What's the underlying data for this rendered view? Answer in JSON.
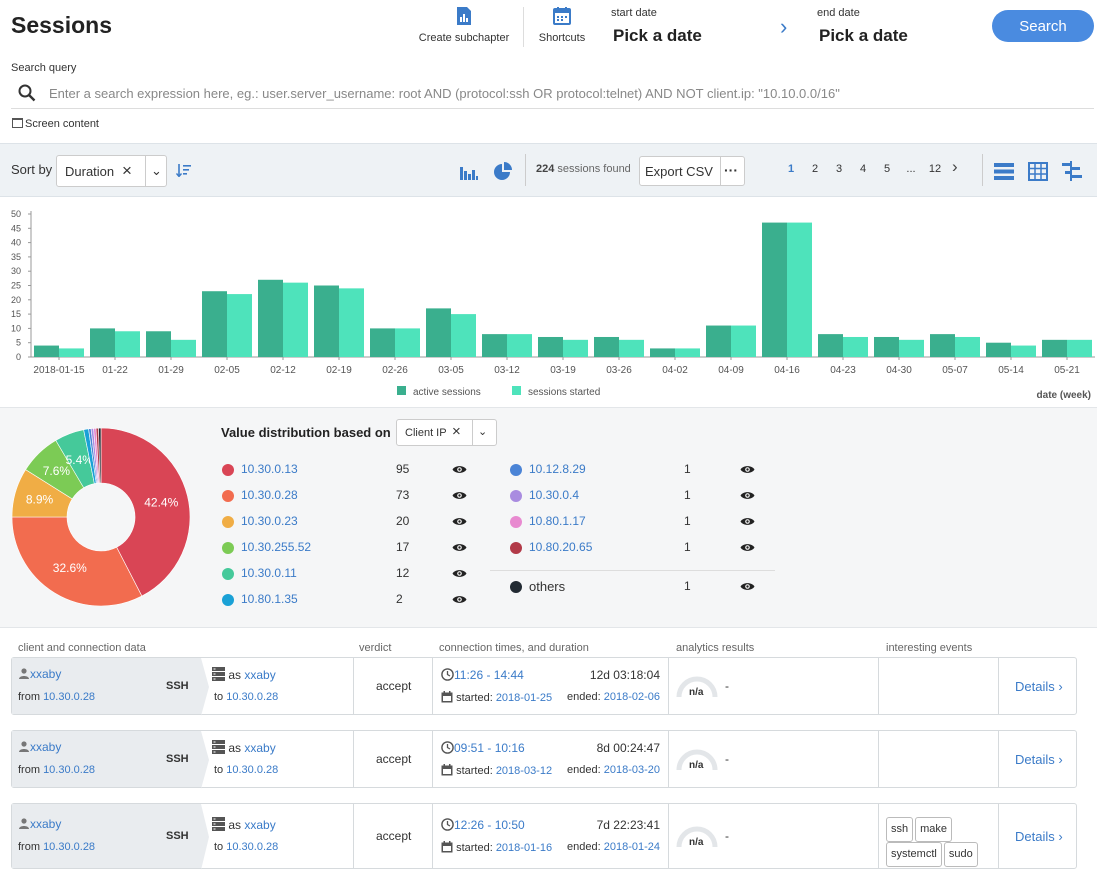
{
  "header": {
    "title": "Sessions",
    "create_subchapter": "Create subchapter",
    "shortcuts": "Shortcuts",
    "start_date_label": "start date",
    "start_date_value": "Pick a date",
    "end_date_label": "end date",
    "end_date_value": "Pick a date",
    "search_button": "Search"
  },
  "search": {
    "label": "Search query",
    "placeholder": "Enter a search expression here, eg.: user.server_username: root AND (protocol:ssh OR protocol:telnet) AND NOT client.ip: \"10.10.0.0/16\"",
    "screen_content": "Screen content"
  },
  "toolbar": {
    "sort_label": "Sort by",
    "sort_value": "Duration",
    "count": "224",
    "count_suffix": "sessions found",
    "export": "Export CSV",
    "more": "···",
    "pages": [
      "1",
      "2",
      "3",
      "4",
      "5",
      "...",
      "12"
    ],
    "active_page": "1"
  },
  "chart_data": {
    "type": "bar",
    "categories": [
      "2018-01-15",
      "01-22",
      "01-29",
      "02-05",
      "02-12",
      "02-19",
      "02-26",
      "03-05",
      "03-12",
      "03-19",
      "03-26",
      "04-02",
      "04-09",
      "04-16",
      "04-23",
      "04-30",
      "05-07",
      "05-14",
      "05-21"
    ],
    "series": [
      {
        "name": "active sessions",
        "color": "#3aaf8e",
        "values": [
          4,
          10,
          9,
          23,
          27,
          25,
          10,
          17,
          8,
          7,
          7,
          3,
          11,
          47,
          8,
          7,
          8,
          5,
          6
        ]
      },
      {
        "name": "sessions started",
        "color": "#4ee3bb",
        "values": [
          3,
          9,
          6,
          22,
          26,
          24,
          10,
          15,
          8,
          6,
          6,
          3,
          11,
          47,
          7,
          6,
          7,
          4,
          6
        ]
      }
    ],
    "ylim": [
      0,
      50
    ],
    "yticks": [
      0,
      5,
      10,
      15,
      20,
      25,
      30,
      35,
      40,
      45,
      50
    ],
    "xlabel": "date (week)",
    "legend": "bottom-center"
  },
  "distribution": {
    "title": "Value distribution based on",
    "field": "Client IP",
    "pie_labels": [
      "42.4%",
      "32.6%",
      "8.9%",
      "7.6%",
      "5.4%"
    ],
    "items": [
      {
        "ip": "10.30.0.13",
        "count": 95,
        "color": "#d94555"
      },
      {
        "ip": "10.30.0.28",
        "count": 73,
        "color": "#f26c4f"
      },
      {
        "ip": "10.30.0.23",
        "count": 20,
        "color": "#f0ad45"
      },
      {
        "ip": "10.30.255.52",
        "count": 17,
        "color": "#7ccb55"
      },
      {
        "ip": "10.30.0.11",
        "count": 12,
        "color": "#45c99a"
      },
      {
        "ip": "10.80.1.35",
        "count": 2,
        "color": "#1aa1d6"
      },
      {
        "ip": "10.12.8.29",
        "count": 1,
        "color": "#4b84d6"
      },
      {
        "ip": "10.30.0.4",
        "count": 1,
        "color": "#a98ce0"
      },
      {
        "ip": "10.80.1.17",
        "count": 1,
        "color": "#e88ad0"
      },
      {
        "ip": "10.80.20.65",
        "count": 1,
        "color": "#b23a48"
      },
      {
        "ip": "others",
        "count": 1,
        "color": "#222a33"
      }
    ]
  },
  "columns": {
    "client": "client and connection data",
    "verdict": "verdict",
    "times": "connection times, and duration",
    "analytics": "analytics results",
    "events": "interesting events"
  },
  "rows": [
    {
      "user": "xxaby",
      "from_label": "from",
      "from": "10.30.0.28",
      "proto": "SSH",
      "as_label": "as",
      "as": "xxaby",
      "to_label": "to",
      "to": "10.30.0.28",
      "verdict": "accept",
      "time": "11:26 - 14:44",
      "duration": "12d 03:18:04",
      "started_label": "started:",
      "started": "2018-01-25",
      "ended_label": "ended:",
      "ended": "2018-02-06",
      "analytics": "n/a",
      "dash": "-",
      "details": "Details",
      "events": []
    },
    {
      "user": "xxaby",
      "from_label": "from",
      "from": "10.30.0.28",
      "proto": "SSH",
      "as_label": "as",
      "as": "xxaby",
      "to_label": "to",
      "to": "10.30.0.28",
      "verdict": "accept",
      "time": "09:51 - 10:16",
      "duration": "8d 00:24:47",
      "started_label": "started:",
      "started": "2018-03-12",
      "ended_label": "ended:",
      "ended": "2018-03-20",
      "analytics": "n/a",
      "dash": "-",
      "details": "Details",
      "events": []
    },
    {
      "user": "xxaby",
      "from_label": "from",
      "from": "10.30.0.28",
      "proto": "SSH",
      "as_label": "as",
      "as": "xxaby",
      "to_label": "to",
      "to": "10.30.0.28",
      "verdict": "accept",
      "time": "12:26 - 10:50",
      "duration": "7d 22:23:41",
      "started_label": "started:",
      "started": "2018-01-16",
      "ended_label": "ended:",
      "ended": "2018-01-24",
      "analytics": "n/a",
      "dash": "-",
      "details": "Details",
      "events": [
        "ssh",
        "make",
        "systemctl",
        "sudo"
      ]
    }
  ]
}
